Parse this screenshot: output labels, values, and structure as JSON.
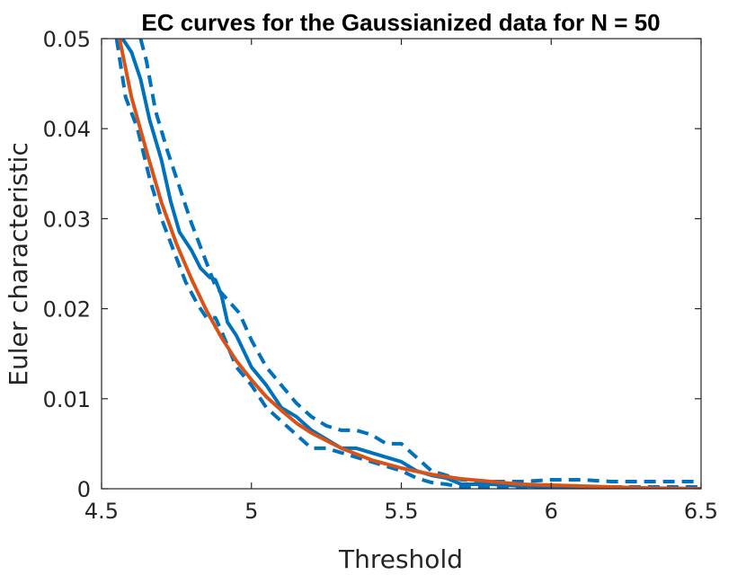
{
  "chart_data": {
    "type": "line",
    "title": "EC curves for the Gaussianized data for N = 50",
    "xlabel": "Threshold",
    "ylabel": "Euler characteristic",
    "xlim": [
      4.5,
      6.5
    ],
    "ylim": [
      0,
      0.05
    ],
    "xticks": [
      4.5,
      5,
      5.5,
      6,
      6.5
    ],
    "xtick_labels": [
      "4.5",
      "5",
      "5.5",
      "6",
      "6.5"
    ],
    "yticks": [
      0,
      0.01,
      0.02,
      0.03,
      0.04,
      0.05
    ],
    "ytick_labels": [
      "0",
      "0.01",
      "0.02",
      "0.03",
      "0.04",
      "0.05"
    ],
    "grid": false,
    "legend": "none",
    "series": [
      {
        "style": "solid",
        "color": "#0072BD",
        "x": [
          4.57,
          4.6,
          4.63,
          4.66,
          4.7,
          4.73,
          4.76,
          4.8,
          4.83,
          4.86,
          4.88,
          4.9,
          4.92,
          4.95,
          5.0,
          5.05,
          5.1,
          5.15,
          5.2,
          5.25,
          5.3,
          5.35,
          5.4,
          5.45,
          5.5,
          5.55,
          5.6,
          5.65,
          5.7,
          5.8,
          5.9,
          6.0,
          6.2,
          6.5
        ],
        "y": [
          0.05,
          0.0485,
          0.0455,
          0.041,
          0.0365,
          0.032,
          0.0285,
          0.0265,
          0.0245,
          0.0235,
          0.0232,
          0.0215,
          0.0185,
          0.017,
          0.0135,
          0.0115,
          0.009,
          0.008,
          0.0065,
          0.0055,
          0.0045,
          0.0045,
          0.004,
          0.0035,
          0.003,
          0.002,
          0.0015,
          0.0012,
          0.0005,
          0.0005,
          0.0003,
          0.0002,
          0.0001,
          0.0
        ]
      },
      {
        "style": "dashed",
        "color": "#0072BD",
        "x": [
          4.63,
          4.65,
          4.68,
          4.72,
          4.76,
          4.8,
          4.84,
          4.88,
          4.92,
          4.96,
          5.0,
          5.05,
          5.1,
          5.15,
          5.2,
          5.25,
          5.3,
          5.35,
          5.4,
          5.45,
          5.5,
          5.55,
          5.6,
          5.65,
          5.7,
          5.8,
          5.9,
          6.0,
          6.1,
          6.2,
          6.3,
          6.5
        ],
        "y": [
          0.05,
          0.0475,
          0.042,
          0.0375,
          0.0335,
          0.0295,
          0.026,
          0.0225,
          0.021,
          0.0195,
          0.0165,
          0.0135,
          0.0115,
          0.0095,
          0.008,
          0.007,
          0.0065,
          0.0065,
          0.006,
          0.005,
          0.005,
          0.0035,
          0.002,
          0.0015,
          0.001,
          0.0008,
          0.0008,
          0.001,
          0.001,
          0.0008,
          0.0008,
          0.0008
        ]
      },
      {
        "style": "dashed",
        "color": "#0072BD",
        "x": [
          4.55,
          4.58,
          4.62,
          4.66,
          4.7,
          4.74,
          4.78,
          4.82,
          4.85,
          4.88,
          4.9,
          4.95,
          5.0,
          5.05,
          5.1,
          5.15,
          5.2,
          5.25,
          5.3,
          5.35,
          5.4,
          5.45,
          5.5,
          5.55,
          5.6,
          5.65,
          5.7,
          5.8,
          5.9,
          6.0,
          6.2,
          6.5
        ],
        "y": [
          0.05,
          0.0435,
          0.04,
          0.0345,
          0.03,
          0.0265,
          0.023,
          0.0205,
          0.019,
          0.019,
          0.0175,
          0.0135,
          0.0115,
          0.009,
          0.0075,
          0.006,
          0.0045,
          0.0045,
          0.004,
          0.0035,
          0.003,
          0.0025,
          0.002,
          0.0012,
          0.0007,
          0.0005,
          0.0002,
          0.0002,
          0.0002,
          0.0002,
          0.0002,
          0.0002
        ]
      },
      {
        "style": "solid",
        "color": "#D95319",
        "x": [
          4.56,
          4.6,
          4.65,
          4.7,
          4.75,
          4.8,
          4.85,
          4.9,
          4.95,
          5.0,
          5.05,
          5.1,
          5.15,
          5.2,
          5.3,
          5.4,
          5.5,
          5.6,
          5.7,
          5.8,
          5.9,
          6.0,
          6.1,
          6.2,
          6.3,
          6.5
        ],
        "y": [
          0.05,
          0.0435,
          0.0375,
          0.0318,
          0.0272,
          0.0233,
          0.0198,
          0.0168,
          0.0142,
          0.0121,
          0.0102,
          0.0087,
          0.0073,
          0.0062,
          0.0045,
          0.0032,
          0.0023,
          0.0016,
          0.0011,
          0.0008,
          0.0005,
          0.0004,
          0.0003,
          0.0002,
          0.0001,
          0.0
        ]
      }
    ]
  }
}
